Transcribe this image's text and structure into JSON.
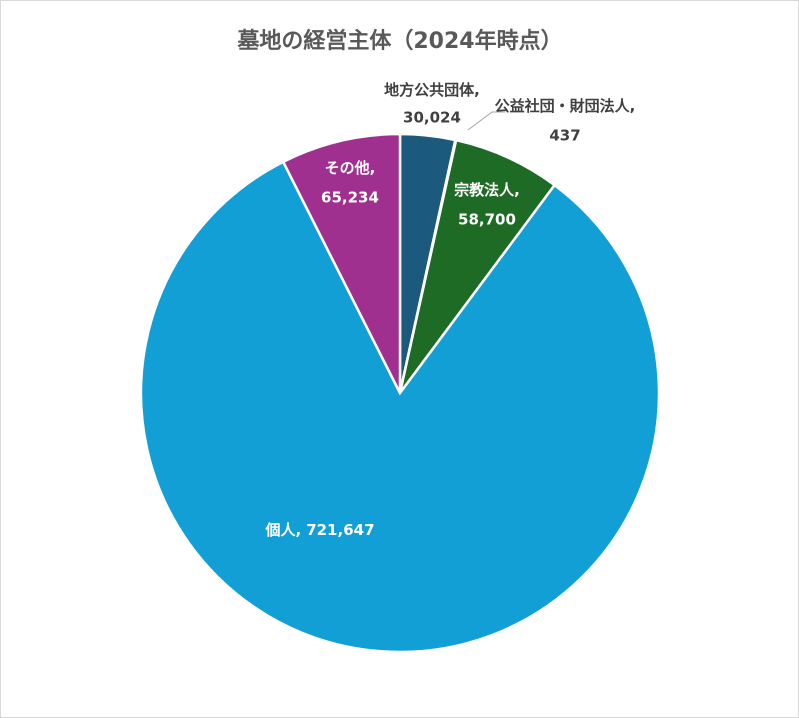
{
  "chart_data": {
    "type": "pie",
    "title": "墓地の経営主体（2024年時点）",
    "categories": [
      "地方公共団体",
      "公益社団・財団法人",
      "宗教法人",
      "個人",
      "その他"
    ],
    "values": [
      30024,
      437,
      58700,
      721647,
      65234
    ],
    "value_labels": [
      "30,024",
      "437",
      "58,700",
      "721,647",
      "65,234"
    ],
    "label_separator": ",",
    "colors": [
      "#1b5a7c",
      "#2c6aa0",
      "#1d6b25",
      "#129fd6",
      "#a0308f"
    ]
  }
}
